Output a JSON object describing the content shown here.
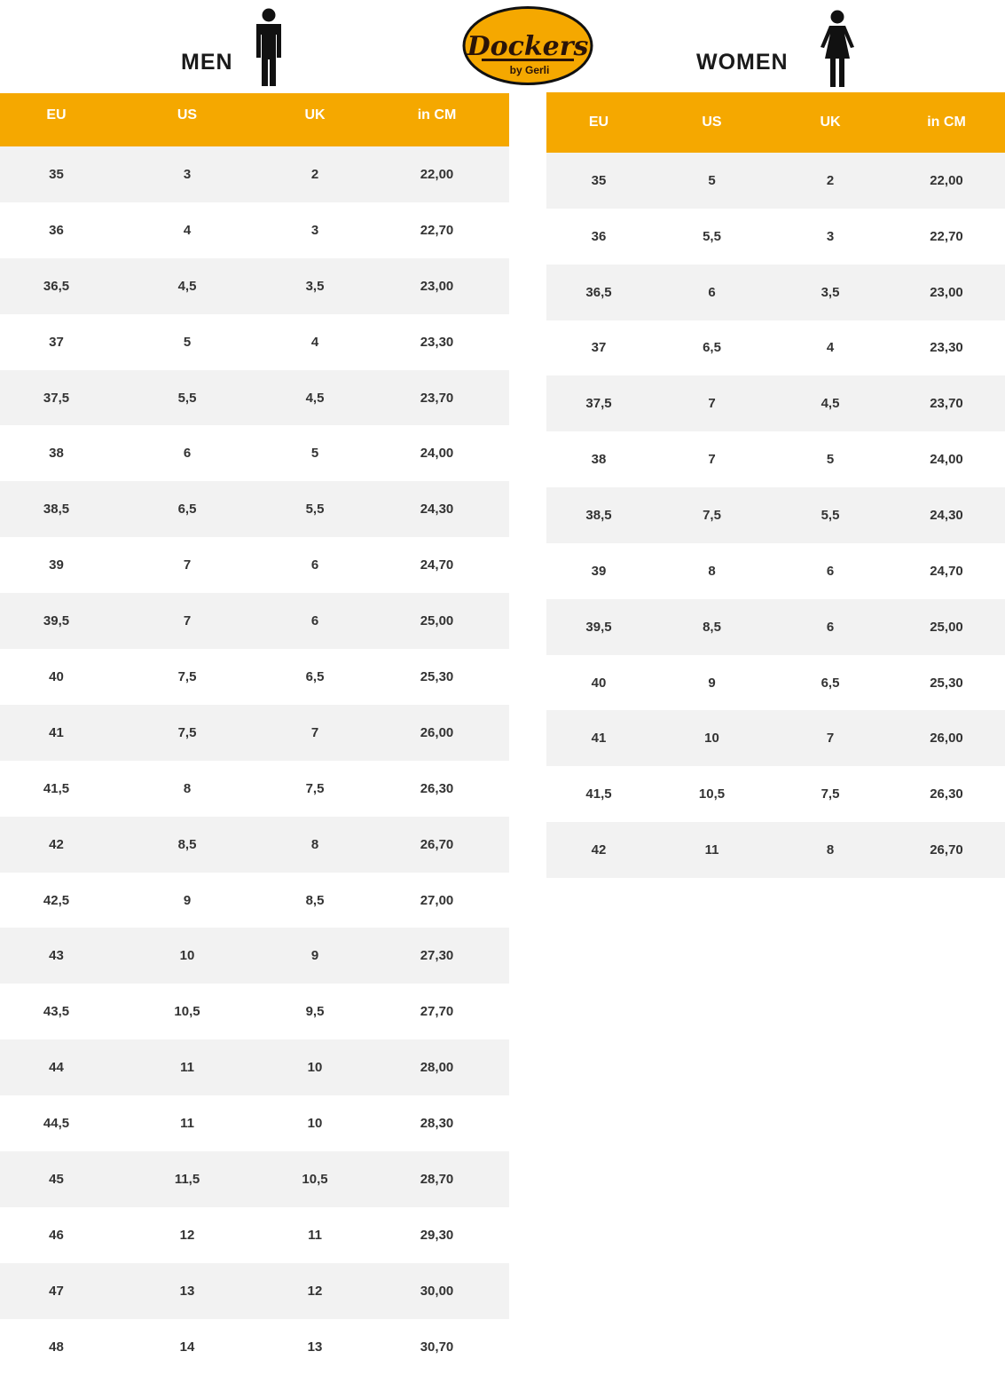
{
  "brand": {
    "name": "Dockers",
    "sub": "by Gerli",
    "color": "#f5a800"
  },
  "men": {
    "title": "MEN",
    "icon": "man-icon",
    "headers": [
      "EU",
      "US",
      "UK",
      "in CM"
    ],
    "rows": [
      [
        "35",
        "3",
        "2",
        "22,00"
      ],
      [
        "36",
        "4",
        "3",
        "22,70"
      ],
      [
        "36,5",
        "4,5",
        "3,5",
        "23,00"
      ],
      [
        "37",
        "5",
        "4",
        "23,30"
      ],
      [
        "37,5",
        "5,5",
        "4,5",
        "23,70"
      ],
      [
        "38",
        "6",
        "5",
        "24,00"
      ],
      [
        "38,5",
        "6,5",
        "5,5",
        "24,30"
      ],
      [
        "39",
        "7",
        "6",
        "24,70"
      ],
      [
        "39,5",
        "7",
        "6",
        "25,00"
      ],
      [
        "40",
        "7,5",
        "6,5",
        "25,30"
      ],
      [
        "41",
        "7,5",
        "7",
        "26,00"
      ],
      [
        "41,5",
        "8",
        "7,5",
        "26,30"
      ],
      [
        "42",
        "8,5",
        "8",
        "26,70"
      ],
      [
        "42,5",
        "9",
        "8,5",
        "27,00"
      ],
      [
        "43",
        "10",
        "9",
        "27,30"
      ],
      [
        "43,5",
        "10,5",
        "9,5",
        "27,70"
      ],
      [
        "44",
        "11",
        "10",
        "28,00"
      ],
      [
        "44,5",
        "11",
        "10",
        "28,30"
      ],
      [
        "45",
        "11,5",
        "10,5",
        "28,70"
      ],
      [
        "46",
        "12",
        "11",
        "29,30"
      ],
      [
        "47",
        "13",
        "12",
        "30,00"
      ],
      [
        "48",
        "14",
        "13",
        "30,70"
      ]
    ]
  },
  "women": {
    "title": "WOMEN",
    "icon": "woman-icon",
    "headers": [
      "EU",
      "US",
      "UK",
      "in CM"
    ],
    "rows": [
      [
        "35",
        "5",
        "2",
        "22,00"
      ],
      [
        "36",
        "5,5",
        "3",
        "22,70"
      ],
      [
        "36,5",
        "6",
        "3,5",
        "23,00"
      ],
      [
        "37",
        "6,5",
        "4",
        "23,30"
      ],
      [
        "37,5",
        "7",
        "4,5",
        "23,70"
      ],
      [
        "38",
        "7",
        "5",
        "24,00"
      ],
      [
        "38,5",
        "7,5",
        "5,5",
        "24,30"
      ],
      [
        "39",
        "8",
        "6",
        "24,70"
      ],
      [
        "39,5",
        "8,5",
        "6",
        "25,00"
      ],
      [
        "40",
        "9",
        "6,5",
        "25,30"
      ],
      [
        "41",
        "10",
        "7",
        "26,00"
      ],
      [
        "41,5",
        "10,5",
        "7,5",
        "26,30"
      ],
      [
        "42",
        "11",
        "8",
        "26,70"
      ]
    ]
  }
}
